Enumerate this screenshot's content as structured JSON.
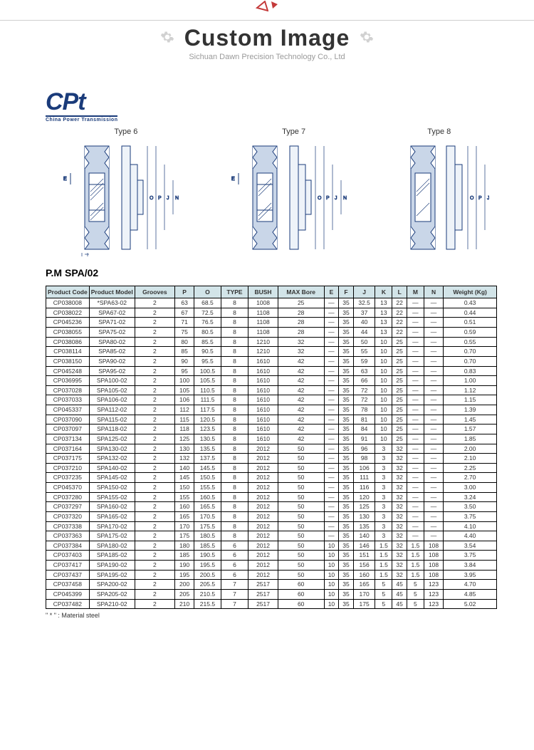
{
  "banner": {
    "title": "Custom Image",
    "subtitle": "Sichuan Dawn Precision Technology Co., Ltd",
    "triangle_color": "#c43a3a",
    "gear_color": "#bdbdbd"
  },
  "logo": {
    "main": "CPt",
    "sub": "China Power Transmission",
    "color": "#1a3b7a"
  },
  "diagrams": {
    "stroke": "#1a3b7a",
    "labels": [
      "Type 6",
      "Type 7",
      "Type 8"
    ]
  },
  "section_title": "P.M SPA/02",
  "table": {
    "header_bg": "#d2e4e8",
    "columns": [
      "Product Code",
      "Product Model",
      "Grooves",
      "P",
      "O",
      "TYPE",
      "BUSH",
      "MAX Bore",
      "E",
      "F",
      "J",
      "K",
      "L",
      "M",
      "N",
      "Weight (Kg)"
    ],
    "rows": [
      [
        "CP038008",
        "*SPA63-02",
        "2",
        "63",
        "68.5",
        "8",
        "1008",
        "25",
        "—",
        "35",
        "32.5",
        "13",
        "22",
        "—",
        "—",
        "0.43"
      ],
      [
        "CP038022",
        "SPA67-02",
        "2",
        "67",
        "72.5",
        "8",
        "1108",
        "28",
        "—",
        "35",
        "37",
        "13",
        "22",
        "—",
        "—",
        "0.44"
      ],
      [
        "CP045236",
        "SPA71-02",
        "2",
        "71",
        "76.5",
        "8",
        "1108",
        "28",
        "—",
        "35",
        "40",
        "13",
        "22",
        "—",
        "—",
        "0.51"
      ],
      [
        "CP038055",
        "SPA75-02",
        "2",
        "75",
        "80.5",
        "8",
        "1108",
        "28",
        "—",
        "35",
        "44",
        "13",
        "22",
        "—",
        "—",
        "0.59"
      ],
      [
        "CP038086",
        "SPA80-02",
        "2",
        "80",
        "85.5",
        "8",
        "1210",
        "32",
        "—",
        "35",
        "50",
        "10",
        "25",
        "—",
        "—",
        "0.55"
      ],
      [
        "CP038114",
        "SPA85-02",
        "2",
        "85",
        "90.5",
        "8",
        "1210",
        "32",
        "—",
        "35",
        "55",
        "10",
        "25",
        "—",
        "—",
        "0.70"
      ],
      [
        "CP038150",
        "SPA90-02",
        "2",
        "90",
        "95.5",
        "8",
        "1610",
        "42",
        "—",
        "35",
        "59",
        "10",
        "25",
        "—",
        "—",
        "0.70"
      ],
      [
        "CP045248",
        "SPA95-02",
        "2",
        "95",
        "100.5",
        "8",
        "1610",
        "42",
        "—",
        "35",
        "63",
        "10",
        "25",
        "—",
        "—",
        "0.83"
      ],
      [
        "CP036995",
        "SPA100-02",
        "2",
        "100",
        "105.5",
        "8",
        "1610",
        "42",
        "—",
        "35",
        "66",
        "10",
        "25",
        "—",
        "—",
        "1.00"
      ],
      [
        "CP037028",
        "SPA105-02",
        "2",
        "105",
        "110.5",
        "8",
        "1610",
        "42",
        "—",
        "35",
        "72",
        "10",
        "25",
        "—",
        "—",
        "1.12"
      ],
      [
        "CP037033",
        "SPA106-02",
        "2",
        "106",
        "111.5",
        "8",
        "1610",
        "42",
        "—",
        "35",
        "72",
        "10",
        "25",
        "—",
        "—",
        "1.15"
      ],
      [
        "CP045337",
        "SPA112-02",
        "2",
        "112",
        "117.5",
        "8",
        "1610",
        "42",
        "—",
        "35",
        "78",
        "10",
        "25",
        "—",
        "—",
        "1.39"
      ],
      [
        "CP037090",
        "SPA115-02",
        "2",
        "115",
        "120.5",
        "8",
        "1610",
        "42",
        "—",
        "35",
        "81",
        "10",
        "25",
        "—",
        "—",
        "1.45"
      ],
      [
        "CP037097",
        "SPA118-02",
        "2",
        "118",
        "123.5",
        "8",
        "1610",
        "42",
        "—",
        "35",
        "84",
        "10",
        "25",
        "—",
        "—",
        "1.57"
      ],
      [
        "CP037134",
        "SPA125-02",
        "2",
        "125",
        "130.5",
        "8",
        "1610",
        "42",
        "—",
        "35",
        "91",
        "10",
        "25",
        "—",
        "—",
        "1.85"
      ],
      [
        "CP037164",
        "SPA130-02",
        "2",
        "130",
        "135.5",
        "8",
        "2012",
        "50",
        "—",
        "35",
        "96",
        "3",
        "32",
        "—",
        "—",
        "2.00"
      ],
      [
        "CP037175",
        "SPA132-02",
        "2",
        "132",
        "137.5",
        "8",
        "2012",
        "50",
        "—",
        "35",
        "98",
        "3",
        "32",
        "—",
        "—",
        "2.10"
      ],
      [
        "CP037210",
        "SPA140-02",
        "2",
        "140",
        "145.5",
        "8",
        "2012",
        "50",
        "—",
        "35",
        "106",
        "3",
        "32",
        "—",
        "—",
        "2.25"
      ],
      [
        "CP037235",
        "SPA145-02",
        "2",
        "145",
        "150.5",
        "8",
        "2012",
        "50",
        "—",
        "35",
        "111",
        "3",
        "32",
        "—",
        "—",
        "2.70"
      ],
      [
        "CP045370",
        "SPA150-02",
        "2",
        "150",
        "155.5",
        "8",
        "2012",
        "50",
        "—",
        "35",
        "116",
        "3",
        "32",
        "—",
        "—",
        "3.00"
      ],
      [
        "CP037280",
        "SPA155-02",
        "2",
        "155",
        "160.5",
        "8",
        "2012",
        "50",
        "—",
        "35",
        "120",
        "3",
        "32",
        "—",
        "—",
        "3.24"
      ],
      [
        "CP037297",
        "SPA160-02",
        "2",
        "160",
        "165.5",
        "8",
        "2012",
        "50",
        "—",
        "35",
        "125",
        "3",
        "32",
        "—",
        "—",
        "3.50"
      ],
      [
        "CP037320",
        "SPA165-02",
        "2",
        "165",
        "170.5",
        "8",
        "2012",
        "50",
        "—",
        "35",
        "130",
        "3",
        "32",
        "—",
        "—",
        "3.75"
      ],
      [
        "CP037338",
        "SPA170-02",
        "2",
        "170",
        "175.5",
        "8",
        "2012",
        "50",
        "—",
        "35",
        "135",
        "3",
        "32",
        "—",
        "—",
        "4.10"
      ],
      [
        "CP037363",
        "SPA175-02",
        "2",
        "175",
        "180.5",
        "8",
        "2012",
        "50",
        "—",
        "35",
        "140",
        "3",
        "32",
        "—",
        "—",
        "4.40"
      ],
      [
        "CP037384",
        "SPA180-02",
        "2",
        "180",
        "185.5",
        "6",
        "2012",
        "50",
        "10",
        "35",
        "146",
        "1.5",
        "32",
        "1.5",
        "108",
        "3.54"
      ],
      [
        "CP037403",
        "SPA185-02",
        "2",
        "185",
        "190.5",
        "6",
        "2012",
        "50",
        "10",
        "35",
        "151",
        "1.5",
        "32",
        "1.5",
        "108",
        "3.75"
      ],
      [
        "CP037417",
        "SPA190-02",
        "2",
        "190",
        "195.5",
        "6",
        "2012",
        "50",
        "10",
        "35",
        "156",
        "1.5",
        "32",
        "1.5",
        "108",
        "3.84"
      ],
      [
        "CP037437",
        "SPA195-02",
        "2",
        "195",
        "200.5",
        "6",
        "2012",
        "50",
        "10",
        "35",
        "160",
        "1.5",
        "32",
        "1.5",
        "108",
        "3.95"
      ],
      [
        "CP037458",
        "SPA200-02",
        "2",
        "200",
        "205.5",
        "7",
        "2517",
        "60",
        "10",
        "35",
        "165",
        "5",
        "45",
        "5",
        "123",
        "4.70"
      ],
      [
        "CP045399",
        "SPA205-02",
        "2",
        "205",
        "210.5",
        "7",
        "2517",
        "60",
        "10",
        "35",
        "170",
        "5",
        "45",
        "5",
        "123",
        "4.85"
      ],
      [
        "CP037482",
        "SPA210-02",
        "2",
        "210",
        "215.5",
        "7",
        "2517",
        "60",
        "10",
        "35",
        "175",
        "5",
        "45",
        "5",
        "123",
        "5.02"
      ]
    ]
  },
  "footnote": "\" * \" : Material steel"
}
